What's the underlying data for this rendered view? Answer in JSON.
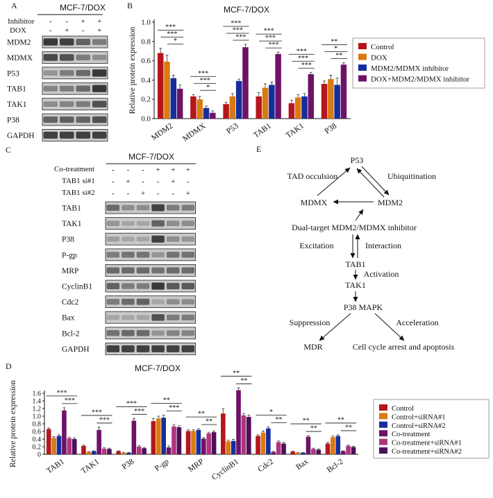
{
  "colors": {
    "red": "#b5161c",
    "orange": "#d97a12",
    "blue": "#152e9e",
    "purple": "#6e1268",
    "magenta": "#b0357f",
    "darkpurple": "#4d0f58",
    "blot_dark": "#2a2a2a",
    "blot_bg": "#c9c9c9"
  },
  "panel_a": {
    "label": "A",
    "title": "MCF-7/DOX",
    "cond_names": [
      "Inhibitor",
      "DOX"
    ],
    "cond_signs": [
      [
        "-",
        "-",
        "+",
        "+"
      ],
      [
        "-",
        "+",
        "-",
        "+"
      ]
    ],
    "rows": [
      {
        "name": "MDM2",
        "intensity": [
          0.85,
          0.8,
          0.6,
          0.45
        ]
      },
      {
        "name": "MDMX",
        "intensity": [
          0.75,
          0.7,
          0.45,
          0.35
        ]
      },
      {
        "name": "P53",
        "intensity": [
          0.3,
          0.45,
          0.55,
          0.85
        ]
      },
      {
        "name": "TAB1",
        "intensity": [
          0.4,
          0.45,
          0.55,
          0.85
        ]
      },
      {
        "name": "TAK1",
        "intensity": [
          0.35,
          0.4,
          0.45,
          0.7
        ]
      },
      {
        "name": "P38",
        "intensity": [
          0.6,
          0.62,
          0.58,
          0.7
        ]
      },
      {
        "name": "GAPDH",
        "intensity": [
          0.8,
          0.8,
          0.8,
          0.8
        ]
      }
    ]
  },
  "panel_c": {
    "label": "C",
    "title": "MCF-7/DOX",
    "cond_names": [
      "Co-treatment",
      "TAB1 si#1",
      "TAB1 si#2"
    ],
    "cond_signs": [
      [
        "-",
        "-",
        "-",
        "+",
        "+",
        "+"
      ],
      [
        "-",
        "+",
        "-",
        "-",
        "+",
        "-"
      ],
      [
        "-",
        "-",
        "+",
        "-",
        "-",
        "+"
      ]
    ],
    "rows": [
      {
        "name": "TAB1",
        "intensity": [
          0.55,
          0.35,
          0.35,
          0.8,
          0.45,
          0.45
        ]
      },
      {
        "name": "TAK1",
        "intensity": [
          0.3,
          0.2,
          0.2,
          0.6,
          0.35,
          0.35
        ]
      },
      {
        "name": "P38",
        "intensity": [
          0.25,
          0.2,
          0.2,
          0.8,
          0.35,
          0.3
        ]
      },
      {
        "name": "P-gp",
        "intensity": [
          0.45,
          0.5,
          0.5,
          0.3,
          0.5,
          0.5
        ]
      },
      {
        "name": "MRP",
        "intensity": [
          0.55,
          0.55,
          0.55,
          0.5,
          0.55,
          0.55
        ]
      },
      {
        "name": "CyclinB1",
        "intensity": [
          0.6,
          0.45,
          0.45,
          0.85,
          0.65,
          0.65
        ]
      },
      {
        "name": "Cdc2",
        "intensity": [
          0.45,
          0.55,
          0.6,
          0.2,
          0.35,
          0.35
        ]
      },
      {
        "name": "Bax",
        "intensity": [
          0.2,
          0.2,
          0.2,
          0.7,
          0.45,
          0.45
        ]
      },
      {
        "name": "Bcl-2",
        "intensity": [
          0.5,
          0.55,
          0.55,
          0.3,
          0.4,
          0.4
        ]
      },
      {
        "name": "GAPDH",
        "intensity": [
          0.8,
          0.8,
          0.8,
          0.8,
          0.8,
          0.8
        ]
      }
    ]
  },
  "panel_e": {
    "label": "E",
    "nodes": {
      "p53": "P53",
      "mdmx": "MDMX",
      "mdm2": "MDM2",
      "inhibitor": "Dual-target MDM2/MDMX inhibitor",
      "tab1": "TAB1",
      "tak1": "TAK1",
      "p38": "P38 MAPK",
      "mdr": "MDR",
      "apoptosis": "Cell cycle arrest and apoptosis"
    },
    "edges": {
      "tad": "TAD occulsion",
      "ubiq": "Ubiquitination",
      "excitation": "Excitation",
      "interaction": "Interaction",
      "activation": "Activation",
      "suppression": "Suppression",
      "acceleration": "Acceleration"
    }
  },
  "chart_data": [
    {
      "panel": "B",
      "type": "bar",
      "title": "MCF-7/DOX",
      "ylabel": "Relative protein expression",
      "xlabel": "",
      "ylim": [
        0,
        1.0
      ],
      "yticks": [
        "0.0",
        "0.2",
        "0.4",
        "0.6",
        "0.8",
        "1.0"
      ],
      "categories": [
        "MDM2",
        "MDMX",
        "P53",
        "TAB1",
        "TAK1",
        "P38"
      ],
      "series": [
        {
          "name": "Control",
          "color": "#b5161c",
          "values": [
            0.68,
            0.23,
            0.15,
            0.23,
            0.16,
            0.36
          ],
          "errors": [
            0.05,
            0.02,
            0.02,
            0.04,
            0.03,
            0.03
          ]
        },
        {
          "name": "DOX",
          "color": "#d97a12",
          "values": [
            0.59,
            0.2,
            0.23,
            0.32,
            0.22,
            0.41
          ],
          "errors": [
            0.07,
            0.03,
            0.03,
            0.04,
            0.03,
            0.04
          ]
        },
        {
          "name": "MDM2/MDMX inhibitor",
          "color": "#152e9e",
          "values": [
            0.42,
            0.11,
            0.39,
            0.35,
            0.23,
            0.35
          ],
          "errors": [
            0.03,
            0.02,
            0.02,
            0.03,
            0.03,
            0.07
          ]
        },
        {
          "name": "DOX+MDM2/MDMX inhibitor",
          "color": "#6e1268",
          "values": [
            0.31,
            0.06,
            0.74,
            0.67,
            0.46,
            0.56
          ],
          "errors": [
            0.04,
            0.02,
            0.03,
            0.02,
            0.02,
            0.02
          ]
        }
      ],
      "annotations": [
        {
          "cat": 0,
          "marks": [
            "***",
            "***",
            "*"
          ]
        },
        {
          "cat": 1,
          "marks": [
            "***",
            "***",
            "*"
          ]
        },
        {
          "cat": 2,
          "marks": [
            "***",
            "***",
            "***"
          ]
        },
        {
          "cat": 3,
          "marks": [
            "***",
            "***",
            "***"
          ]
        },
        {
          "cat": 4,
          "marks": [
            "***",
            "***",
            "***"
          ]
        },
        {
          "cat": 5,
          "marks": [
            "**",
            "*",
            "**"
          ]
        }
      ],
      "legend_position": "right"
    },
    {
      "panel": "D",
      "type": "bar",
      "title": "MCF-7/DOX",
      "ylabel": "Relative protein expression",
      "xlabel": "",
      "ylim": [
        0,
        1.6
      ],
      "yticks": [
        "0",
        "0.2",
        "0.4",
        "0.6",
        "0.8",
        "1.0",
        "1.2",
        "1.4",
        "1.6"
      ],
      "categories": [
        "TAB1",
        "TAK1",
        "P38",
        "P-gp",
        "MRP",
        "CyclinB1",
        "Cdc2",
        "Bax",
        "Bcl-2"
      ],
      "series": [
        {
          "name": "Control",
          "color": "#b5161c",
          "values": [
            0.66,
            0.22,
            0.08,
            0.87,
            0.61,
            1.07,
            0.48,
            0.07,
            0.28
          ],
          "errors": [
            0.03,
            0.02,
            0.01,
            0.07,
            0.03,
            0.13,
            0.03,
            0.01,
            0.03
          ]
        },
        {
          "name": "Control+siRNA#1",
          "color": "#d97a12",
          "values": [
            0.43,
            0.06,
            0.04,
            0.94,
            0.61,
            0.34,
            0.57,
            0.04,
            0.45
          ],
          "errors": [
            0.03,
            0.01,
            0.01,
            0.06,
            0.03,
            0.03,
            0.04,
            0.01,
            0.03
          ]
        },
        {
          "name": "Control+siRNA#2",
          "color": "#152e9e",
          "values": [
            0.48,
            0.08,
            0.04,
            0.96,
            0.64,
            0.35,
            0.68,
            0.04,
            0.48
          ],
          "errors": [
            0.03,
            0.01,
            0.01,
            0.07,
            0.03,
            0.04,
            0.04,
            0.01,
            0.03
          ]
        },
        {
          "name": "Co-treatment",
          "color": "#6e1268",
          "values": [
            1.15,
            0.64,
            0.88,
            0.18,
            0.41,
            1.68,
            0.06,
            0.46,
            0.08
          ],
          "errors": [
            0.07,
            0.07,
            0.06,
            0.04,
            0.03,
            0.06,
            0.02,
            0.03,
            0.01
          ]
        },
        {
          "name": "Co-treatment+siRNA#1",
          "color": "#b0357f",
          "values": [
            0.42,
            0.15,
            0.2,
            0.73,
            0.55,
            1.02,
            0.32,
            0.14,
            0.22
          ],
          "errors": [
            0.03,
            0.02,
            0.03,
            0.04,
            0.03,
            0.05,
            0.03,
            0.02,
            0.02
          ]
        },
        {
          "name": "Co-treatment+siRNA#2",
          "color": "#4d0f58",
          "values": [
            0.4,
            0.14,
            0.16,
            0.71,
            0.58,
            0.98,
            0.28,
            0.12,
            0.19
          ],
          "errors": [
            0.03,
            0.02,
            0.02,
            0.04,
            0.03,
            0.05,
            0.03,
            0.02,
            0.02
          ]
        }
      ],
      "annotations": [
        {
          "cat": 0,
          "marks": [
            "***",
            "***"
          ]
        },
        {
          "cat": 1,
          "marks": [
            "***",
            "***"
          ]
        },
        {
          "cat": 2,
          "marks": [
            "***",
            "***"
          ]
        },
        {
          "cat": 3,
          "marks": [
            "**",
            "***"
          ]
        },
        {
          "cat": 4,
          "marks": [
            "**",
            "**"
          ]
        },
        {
          "cat": 5,
          "marks": [
            "**",
            "**"
          ]
        },
        {
          "cat": 6,
          "marks": [
            "*",
            "**"
          ]
        },
        {
          "cat": 7,
          "marks": [
            "**",
            "**"
          ]
        },
        {
          "cat": 8,
          "marks": [
            "**",
            "**"
          ]
        }
      ],
      "legend_position": "right"
    }
  ]
}
